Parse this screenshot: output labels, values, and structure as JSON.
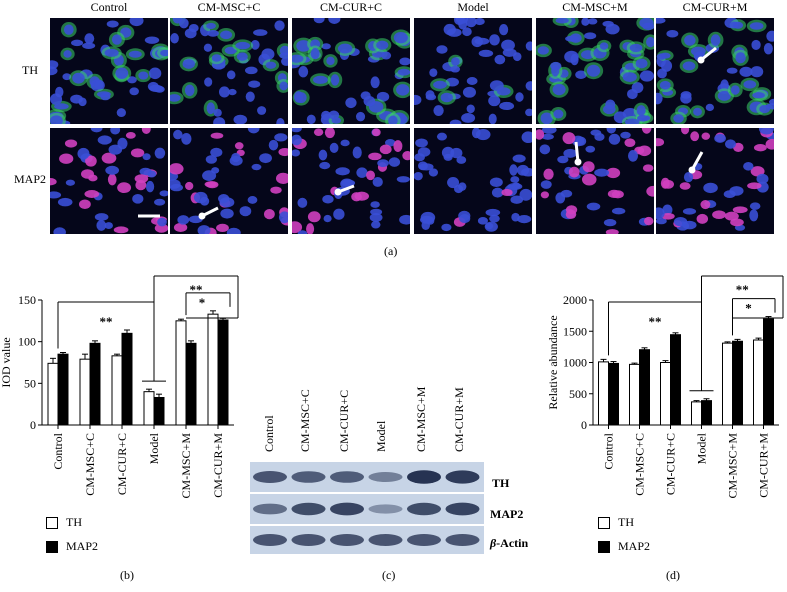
{
  "panel_a": {
    "columns": [
      "Control",
      "CM-MSC+C",
      "CM-CUR+C",
      "Model",
      "CM-MSC+M",
      "CM-CUR+M"
    ],
    "rows": [
      "TH",
      "MAP2"
    ],
    "label": "(a)",
    "tile_colors": {
      "nucleus": "#3a4fd6",
      "th": "#3bd66a",
      "map2": "#d040c0",
      "bg": "#05061a"
    }
  },
  "panel_b": {
    "label": "(b)",
    "legend": {
      "th": "TH",
      "map2": "MAP2"
    }
  },
  "panel_c": {
    "label": "(c)",
    "lanes": [
      "Control",
      "CM-MSC+C",
      "CM-CUR+C",
      "Model",
      "CM-MSC+M",
      "CM-CUR+M"
    ],
    "bands": {
      "th": "TH",
      "map2": "MAP2",
      "actin_prefix": "β",
      "actin_suffix": "-Actin"
    }
  },
  "panel_d": {
    "label": "(d)",
    "legend": {
      "th": "TH",
      "map2": "MAP2"
    }
  },
  "chart_data": [
    {
      "type": "bar",
      "id": "b",
      "categories": [
        "Control",
        "CM-MSC+C",
        "CM-CUR+C",
        "Model",
        "CM-MSC+M",
        "CM-CUR+M"
      ],
      "series": [
        {
          "name": "TH",
          "values": [
            74,
            79,
            83,
            40,
            125,
            133
          ],
          "errors": [
            6,
            6,
            2,
            3,
            2,
            4
          ],
          "color": "#ffffff"
        },
        {
          "name": "MAP2",
          "values": [
            85,
            98,
            110,
            33,
            98,
            126
          ],
          "errors": [
            2,
            3,
            4,
            4,
            3,
            2
          ],
          "color": "#000000"
        }
      ],
      "xlabel": "",
      "ylabel": "IOD value",
      "ylim": [
        0,
        150
      ],
      "yticks": [
        0,
        50,
        100,
        150
      ],
      "significance": [
        "**",
        "**",
        "*"
      ]
    },
    {
      "type": "bar",
      "id": "d",
      "categories": [
        "Control",
        "CM-MSC+C",
        "CM-CUR+C",
        "Model",
        "CM-MSC+M",
        "CM-CUR+M"
      ],
      "series": [
        {
          "name": "TH",
          "values": [
            1010,
            970,
            1000,
            370,
            1310,
            1360
          ],
          "errors": [
            40,
            20,
            30,
            20,
            20,
            30
          ],
          "color": "#ffffff"
        },
        {
          "name": "MAP2",
          "values": [
            985,
            1205,
            1445,
            390,
            1340,
            1695
          ],
          "errors": [
            30,
            30,
            30,
            30,
            30,
            40
          ],
          "color": "#000000"
        }
      ],
      "xlabel": "",
      "ylabel": "Relative abundance",
      "ylim": [
        0,
        2000
      ],
      "yticks": [
        0,
        500,
        1000,
        1500,
        2000
      ],
      "significance": [
        "**",
        "**",
        "*"
      ]
    }
  ]
}
